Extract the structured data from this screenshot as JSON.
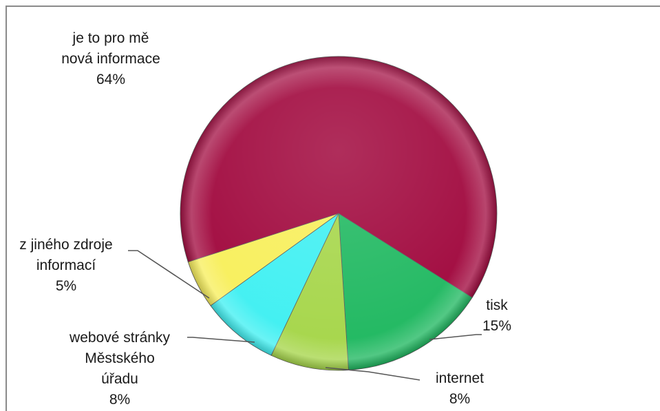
{
  "chart_data": {
    "type": "pie",
    "title": "",
    "slices": [
      {
        "label_lines": [
          "tisk"
        ],
        "percent_label": "15%",
        "value": 15,
        "color": "#1fb860"
      },
      {
        "label_lines": [
          "internet"
        ],
        "percent_label": "8%",
        "value": 8,
        "color": "#a6d64a"
      },
      {
        "label_lines": [
          "webové stránky",
          "Městského",
          "úřadu"
        ],
        "percent_label": "8%",
        "value": 8,
        "color": "#3ff0f2"
      },
      {
        "label_lines": [
          "z jiného zdroje",
          "informací"
        ],
        "percent_label": "5%",
        "value": 5,
        "color": "#f8ef5a"
      },
      {
        "label_lines": [
          "je to pro mě",
          "nová informace"
        ],
        "percent_label": "64%",
        "value": 64,
        "color": "#a0063c"
      }
    ]
  }
}
